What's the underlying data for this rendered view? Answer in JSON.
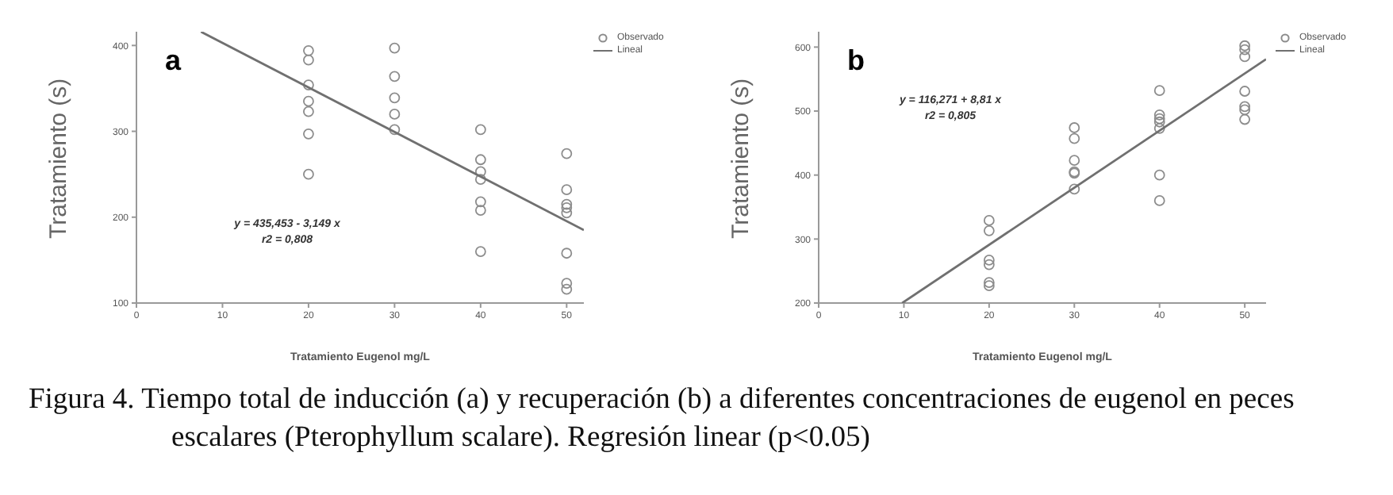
{
  "chart_data": [
    {
      "type": "scatter",
      "ylabel": "Tratamiento (s)",
      "xlabel": "Tratamiento Eugenol mg/L",
      "xlim": [
        0,
        52
      ],
      "xticks": [
        0,
        10,
        20,
        30,
        40,
        50
      ],
      "ylim": [
        100,
        416
      ],
      "yticks": [
        100,
        200,
        300,
        400
      ],
      "marker": "circle",
      "legend": "top right",
      "annotations": [
        "a",
        "y = 435,453 - 3,149  x",
        "r2 = 0,808",
        "Figura 4.  Tiempo total de inducción (a) y recuperación (b) a diferentes concentraciones de eugenol en peces escalares (Pterophyllum scalare). Regresión linear (p<0.05)"
      ],
      "series": [
        {
          "name": "Observado",
          "color": "#8c8c8c",
          "x": [
            20,
            20,
            20,
            20,
            20,
            20,
            20,
            30,
            30,
            30,
            30,
            30,
            40,
            40,
            40,
            40,
            40,
            40,
            40,
            50,
            50,
            50,
            50,
            50,
            50,
            50,
            50
          ],
          "values": [
            394,
            383,
            354,
            335,
            323,
            297,
            250,
            397,
            364,
            339,
            320,
            302,
            302,
            267,
            253,
            244,
            218,
            208,
            160,
            274,
            232,
            215,
            211,
            205,
            158,
            123,
            116
          ]
        },
        {
          "name": "Lineal",
          "type": "line",
          "marker": "none",
          "color": "#707070",
          "x": [
            7.5,
            52
          ],
          "values": [
            416,
            185
          ]
        }
      ]
    },
    {
      "type": "scatter",
      "ylabel": "Tratamiento (s)",
      "xlabel": "Tratamiento Eugenol mg/L",
      "xlim": [
        0,
        52.5
      ],
      "xticks": [
        0,
        10,
        20,
        30,
        40,
        50
      ],
      "ylim": [
        200,
        624
      ],
      "yticks": [
        200,
        300,
        400,
        500,
        600
      ],
      "marker": "circle",
      "legend": "top right",
      "annotations": [
        "b",
        "y = 116,271 + 8,81  x",
        "r2 = 0,805"
      ],
      "series": [
        {
          "name": "Observado",
          "color": "#8c8c8c",
          "x": [
            20,
            20,
            20,
            20,
            20,
            20,
            30,
            30,
            30,
            30,
            30,
            30,
            40,
            40,
            40,
            40,
            40,
            40,
            40,
            50,
            50,
            50,
            50,
            50,
            50,
            50
          ],
          "values": [
            329,
            313,
            267,
            260,
            232,
            227,
            474,
            457,
            423,
            405,
            403,
            378,
            532,
            494,
            488,
            483,
            473,
            400,
            360,
            602,
            596,
            585,
            531,
            507,
            502,
            487
          ]
        },
        {
          "name": "Lineal",
          "type": "line",
          "marker": "none",
          "color": "#707070",
          "x": [
            9.8,
            52.5
          ],
          "values": [
            200,
            581
          ]
        }
      ]
    }
  ]
}
